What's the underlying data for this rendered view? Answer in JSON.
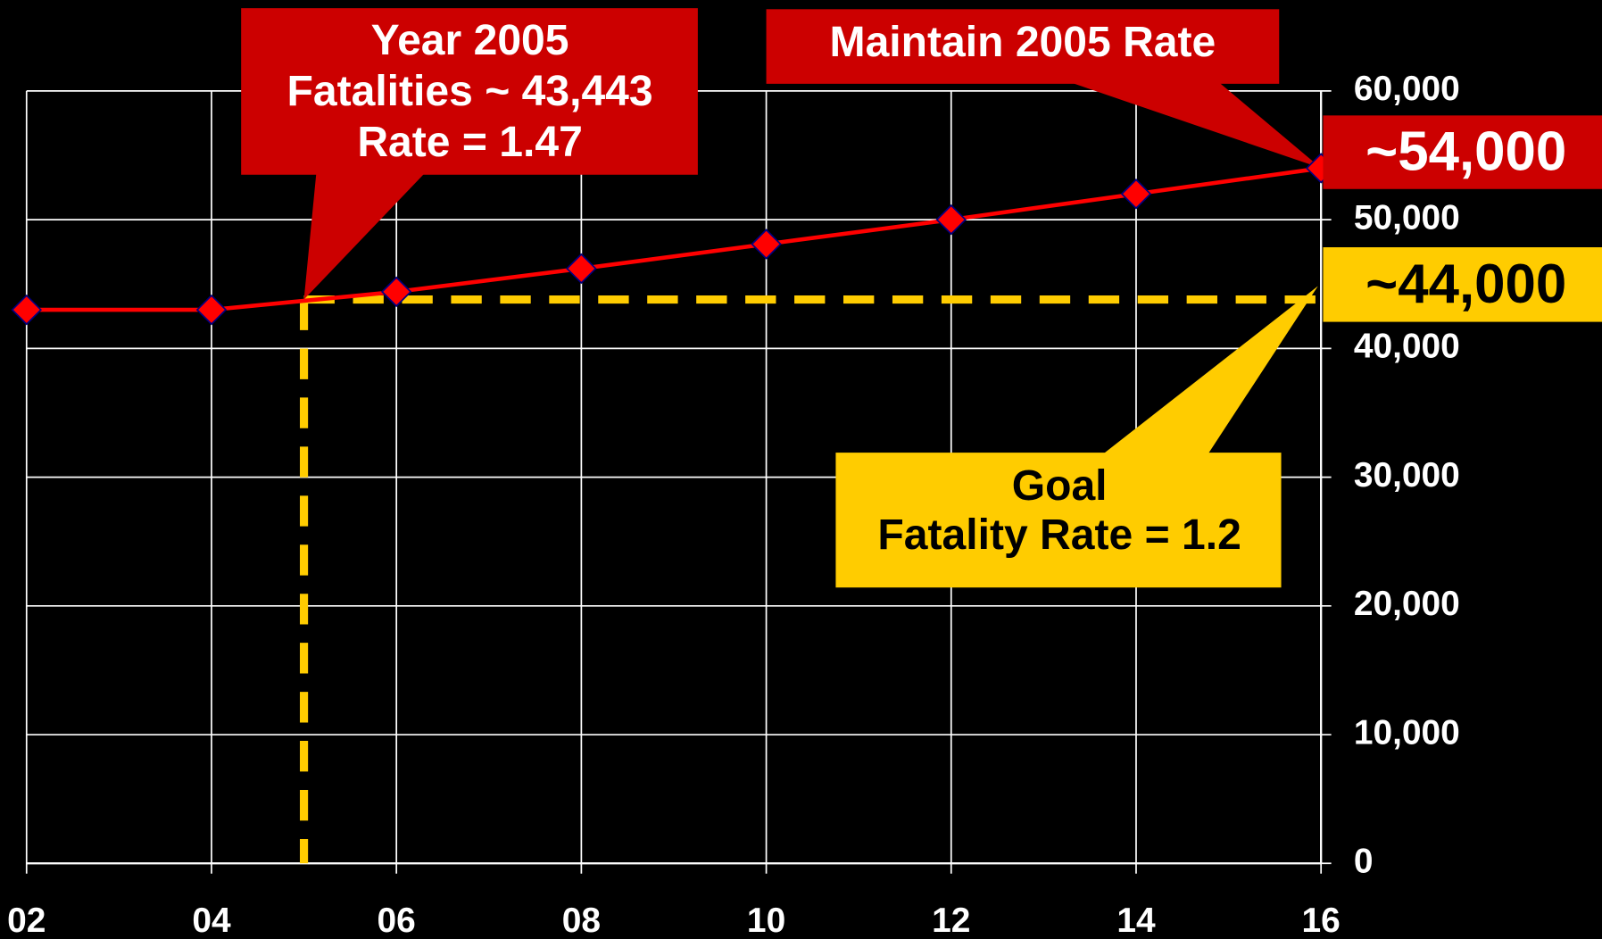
{
  "chart_data": {
    "type": "line",
    "categories": [
      "02",
      "04",
      "06",
      "08",
      "10",
      "12",
      "14",
      "16"
    ],
    "series": [
      {
        "color": "#ff0000",
        "values": [
          43000,
          43000,
          44400,
          46200,
          48100,
          50000,
          52000,
          54000
        ]
      }
    ],
    "ylim": [
      0,
      60000
    ],
    "yticks": [
      0,
      {
        "value": 10000,
        "label": "10,000"
      },
      {
        "value": 20000,
        "label": "20,000"
      },
      {
        "value": 30000,
        "label": "30,000"
      },
      {
        "value": 40000,
        "label": "40,000"
      },
      {
        "value": 50000,
        "label": "50,000"
      },
      {
        "value": 60000,
        "label": "60,000"
      }
    ],
    "grid": true,
    "reference_line": {
      "value": 43800,
      "color": "#ffcc00"
    },
    "annotations": {
      "year_2005": [
        "Year 2005",
        "Fatalities ~ 43,443",
        "Rate = 1.47"
      ],
      "maintain": "Maintain 2005 Rate",
      "high_label": "~54,000",
      "goal_label": "~44,000",
      "goal": [
        "Goal",
        "Fatality Rate = 1.2"
      ]
    }
  }
}
